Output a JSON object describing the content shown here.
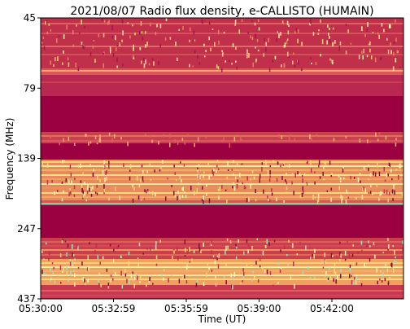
{
  "chart_data": {
    "type": "heatmap",
    "title": "2021/08/07  Radio flux density, e-CALLISTO (HUMAIN)",
    "xlabel": "Time (UT)",
    "ylabel": "Frequency (MHz)",
    "x_ticks": [
      "05:30:00",
      "05:32:59",
      "05:35:59",
      "05:39:00",
      "05:42:00"
    ],
    "y_ticks": [
      "45",
      "79",
      "139",
      "247",
      "437"
    ],
    "y_scale": "log",
    "colormap": "Spectral-like (dark red to yellow to teal)",
    "colors": {
      "background_band": "#9b0040",
      "mid_band": "#c0304a",
      "hot": "#f8d878",
      "peak": "#fff6b0",
      "teal": "#7fd0a8"
    }
  }
}
